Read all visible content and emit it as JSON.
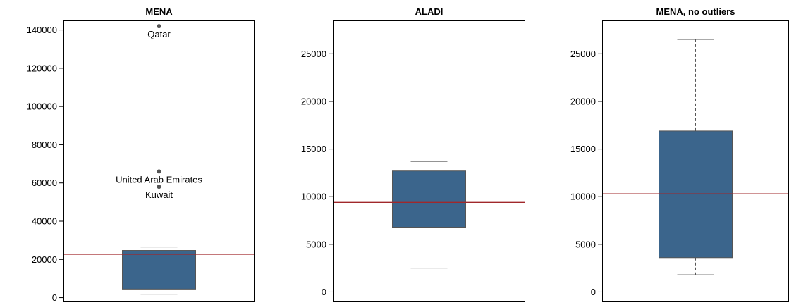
{
  "colors": {
    "box_fill": "#3b658c",
    "box_border": "#555555",
    "whisker": "#555555",
    "mean_line": "#a0282b",
    "outlier": "#555555",
    "frame": "#000000"
  },
  "chart_data": [
    {
      "type": "box",
      "title": "MENA",
      "ylim": [
        -2000,
        145000
      ],
      "yticks": [
        0,
        20000,
        40000,
        60000,
        80000,
        100000,
        120000,
        140000
      ],
      "yticklabels": [
        "0",
        "20000",
        "40000",
        "60000",
        "80000",
        "100000",
        "120000",
        "140000"
      ],
      "box": {
        "whisker_low": 1800,
        "q1": 4500,
        "median": 22800,
        "q3": 24700,
        "whisker_high": 26500
      },
      "mean_line": 22700,
      "outliers": [
        {
          "value": 142000,
          "label": "Qatar"
        },
        {
          "value": 66000,
          "label": "United Arab Emirates"
        },
        {
          "value": 58000,
          "label": "Kuwait"
        }
      ]
    },
    {
      "type": "box",
      "title": "ALADI",
      "ylim": [
        -1000,
        28500
      ],
      "yticks": [
        0,
        5000,
        10000,
        15000,
        20000,
        25000
      ],
      "yticklabels": [
        "0",
        "5000",
        "10000",
        "15000",
        "20000",
        "25000"
      ],
      "box": {
        "whisker_low": 2500,
        "q1": 6800,
        "median": 9400,
        "q3": 12700,
        "whisker_high": 13700
      },
      "mean_line": 9400,
      "outliers": []
    },
    {
      "type": "box",
      "title": "MENA, no outliers",
      "ylim": [
        -1000,
        28500
      ],
      "yticks": [
        0,
        5000,
        10000,
        15000,
        20000,
        25000
      ],
      "yticklabels": [
        "0",
        "5000",
        "10000",
        "15000",
        "20000",
        "25000"
      ],
      "box": {
        "whisker_low": 1800,
        "q1": 3600,
        "median": 10300,
        "q3": 16900,
        "whisker_high": 26500
      },
      "mean_line": 10300,
      "outliers": []
    }
  ]
}
